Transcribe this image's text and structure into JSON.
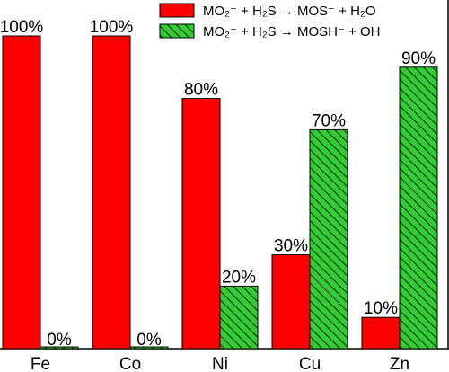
{
  "chart_data": {
    "type": "bar",
    "categories": [
      "Fe",
      "Co",
      "Ni",
      "Cu",
      "Zn"
    ],
    "ylim": [
      0,
      100
    ],
    "series": [
      {
        "name": "MO₂⁻ + H₂S → MOS⁻ + H₂O",
        "values": [
          100,
          100,
          80,
          30,
          10
        ],
        "value_labels": [
          "100%",
          "100%",
          "80%",
          "30%",
          "10%"
        ],
        "color": "#ff0000",
        "pattern": "solid"
      },
      {
        "name": "MO₂⁻ + H₂S → MOSH⁻ + OH",
        "values": [
          0,
          0,
          20,
          70,
          90
        ],
        "value_labels": [
          "0%",
          "0%",
          "20%",
          "70%",
          "90%"
        ],
        "color": "#33cc33",
        "pattern": "hatched"
      }
    ],
    "legend": "top-right",
    "grid": false
  }
}
